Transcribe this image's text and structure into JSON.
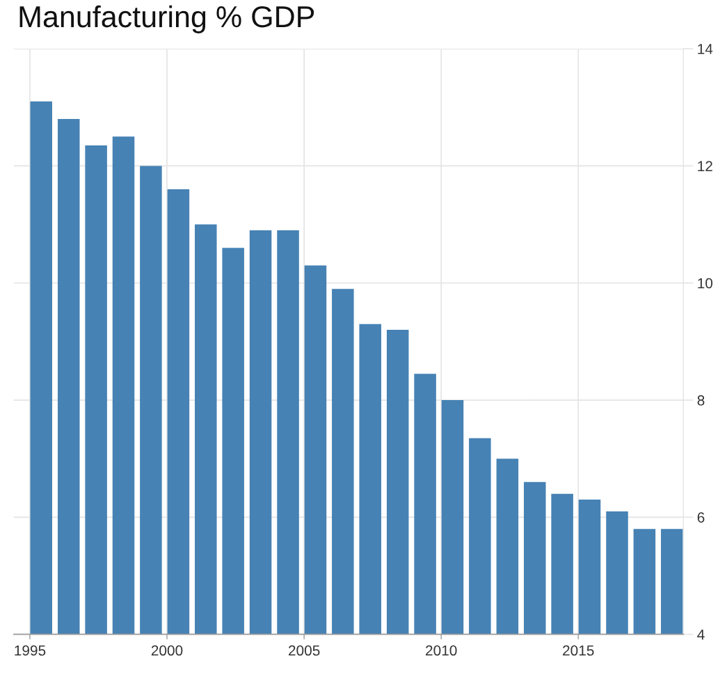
{
  "chart_data": {
    "type": "bar",
    "title": "Manufacturing % GDP",
    "x": [
      "1995-06",
      "1996-06",
      "1997-06",
      "1998-06",
      "1999-06",
      "2000-06",
      "2001-06",
      "2002-06",
      "2003-06",
      "2004-06",
      "2005-06",
      "2006-06",
      "2007-06",
      "2008-06",
      "2009-06",
      "2010-06",
      "2011-06",
      "2012-06",
      "2013-06",
      "2014-06",
      "2015-06",
      "2016-06",
      "2017-06",
      "2018-06"
    ],
    "values": [
      13.1,
      12.8,
      12.35,
      12.5,
      12.0,
      11.6,
      11.0,
      10.6,
      10.9,
      10.9,
      10.3,
      9.9,
      9.3,
      9.2,
      8.45,
      8.0,
      7.35,
      7.0,
      6.6,
      6.4,
      6.3,
      6.1,
      5.8,
      5.8
    ],
    "color": "#4682b4",
    "xlim": [
      "1994-06",
      "2018-11"
    ],
    "xticks": [
      "1995",
      "2000",
      "2005",
      "2010",
      "2015"
    ],
    "ylim": [
      4,
      14
    ],
    "yticks": [
      4,
      6,
      8,
      10,
      12,
      14
    ],
    "grid": true
  }
}
